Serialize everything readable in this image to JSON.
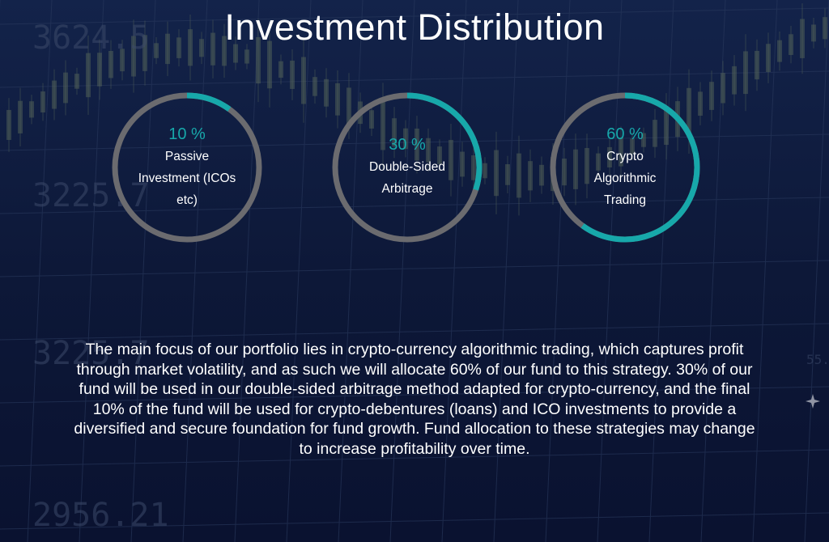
{
  "title": "Investment Distribution",
  "rings": [
    {
      "percent_text": "10 %",
      "fraction": 0.1,
      "label_lines": [
        "Passive",
        "Investment (ICOs",
        "etc)"
      ]
    },
    {
      "percent_text": "30 %",
      "fraction": 0.3,
      "label_lines": [
        "Double-Sided",
        "Arbitrage"
      ]
    },
    {
      "percent_text": "60 %",
      "fraction": 0.6,
      "label_lines": [
        "Crypto",
        "Algorithmic",
        "Trading"
      ]
    }
  ],
  "description": "The main focus of our portfolio lies in crypto-currency algorithmic trading, which captures profit through market volatility, and as such we will allocate 60% of our fund to this strategy. 30% of our fund will be used in our double-sided arbitrage method adapted for crypto-currency, and the final 10% of the fund will be used for crypto-debentures (loans) and ICO investments to provide a diversified and secure foundation for fund growth. Fund allocation to these strategies may change to increase profitability over time.",
  "background_numbers": [
    "3624.5",
    "3225.7",
    "3225.7",
    "2956.21",
    "55."
  ],
  "colors": {
    "background": "#0c1634",
    "accent": "#17a8aa",
    "track": "#6b6b6f",
    "text": "#ffffff"
  }
}
